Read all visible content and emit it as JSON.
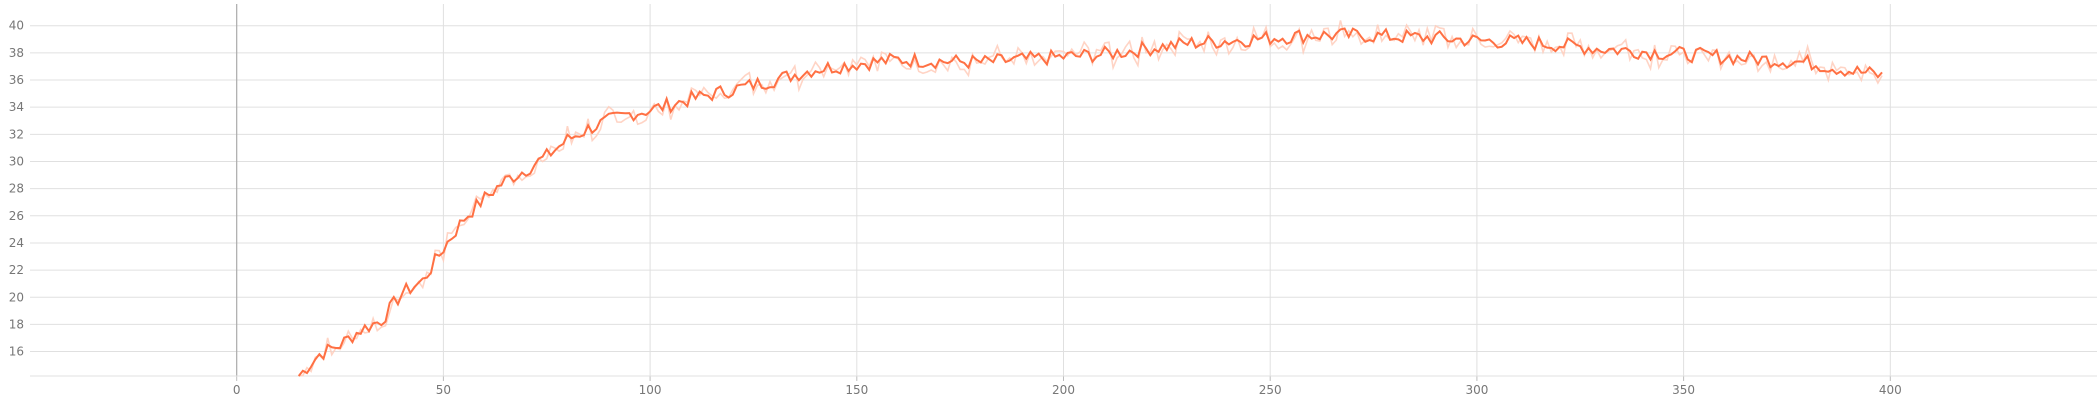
{
  "chart_data": {
    "type": "line",
    "xlim": [
      -50,
      450
    ],
    "ylim": [
      14.2,
      41.6
    ],
    "x_ticks": [
      0,
      50,
      100,
      150,
      200,
      250,
      300,
      350,
      400
    ],
    "y_ticks": [
      16,
      18,
      20,
      22,
      24,
      26,
      28,
      30,
      32,
      34,
      36,
      38,
      40
    ],
    "grid": true,
    "legend": "none",
    "series": [
      {
        "color": "#ff7043",
        "raw_color": "#ffcdbb",
        "x": [
          15,
          20,
          25,
          30,
          35,
          40,
          45,
          50,
          55,
          60,
          65,
          70,
          75,
          80,
          85,
          90,
          95,
          100,
          110,
          120,
          130,
          140,
          150,
          160,
          170,
          180,
          190,
          200,
          210,
          220,
          230,
          240,
          250,
          260,
          270,
          280,
          290,
          300,
          310,
          320,
          330,
          340,
          350,
          360,
          370,
          380,
          390,
          395,
          398
        ],
        "y": [
          14.2,
          15.8,
          16.5,
          17.6,
          18.3,
          20.3,
          21.2,
          23.6,
          25.8,
          27.3,
          28.6,
          29.4,
          30.4,
          31.6,
          32.4,
          33.0,
          33.5,
          33.8,
          34.6,
          35.3,
          36.0,
          36.8,
          37.2,
          37.5,
          37.4,
          37.3,
          37.5,
          37.7,
          37.9,
          38.3,
          38.7,
          38.9,
          39.1,
          39.3,
          39.3,
          39.2,
          39.1,
          38.9,
          38.8,
          38.6,
          38.3,
          38.1,
          37.9,
          37.7,
          37.5,
          37.3,
          36.7,
          36.5,
          36.3
        ]
      }
    ]
  }
}
